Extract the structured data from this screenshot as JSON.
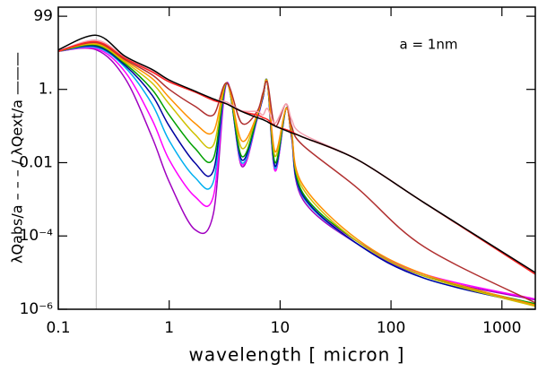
{
  "chart_data": {
    "type": "line",
    "y_label": "λQabs/a – – – / λQext/a ———",
    "x_label": "wavelength [ micron ]",
    "annotation": "a = 1nm",
    "log_x": true,
    "log_y": true,
    "xlim": [
      0.1,
      2000
    ],
    "ylim": [
      1e-06,
      175
    ],
    "xticks": [
      0.1,
      1,
      10,
      100,
      1000
    ],
    "yticks": [
      99,
      {
        "value": 1,
        "label": "1."
      },
      0.01,
      {
        "value": 0.0001,
        "label": "10⁻⁴"
      },
      {
        "value": 1e-06,
        "label": "10⁻⁶"
      }
    ],
    "vline": 0.22,
    "vline_color": "#c8c8c8",
    "x": [
      0.1,
      0.22,
      0.4,
      0.7,
      1,
      1.7,
      2.5,
      3.3,
      4.5,
      6.2,
      7,
      7.7,
      9,
      11.3,
      12.7,
      16,
      50,
      200,
      2000
    ],
    "series": [
      {
        "color": "#a000c0",
        "values": [
          11,
          12,
          2,
          0.05,
          0.003,
          0.00015,
          0.0004,
          1.5,
          0.008,
          0.15,
          0.6,
          1.5,
          0.006,
          0.3,
          0.05,
          0.001,
          6e-05,
          8e-06,
          1.8e-06
        ]
      },
      {
        "color": "#ff00ff",
        "values": [
          11,
          13,
          3,
          0.15,
          0.012,
          0.0012,
          0.0012,
          1.5,
          0.009,
          0.15,
          0.6,
          1.5,
          0.006,
          0.3,
          0.05,
          0.0012,
          7e-05,
          9e-06,
          1.9e-06
        ]
      },
      {
        "color": "#00b0f0",
        "values": [
          11,
          14,
          4,
          0.4,
          0.04,
          0.004,
          0.003,
          1.5,
          0.01,
          0.16,
          0.6,
          1.5,
          0.007,
          0.3,
          0.05,
          0.0012,
          6e-05,
          7e-06,
          1.3e-06
        ]
      },
      {
        "color": "#0000a0",
        "values": [
          11,
          15,
          4.5,
          0.7,
          0.1,
          0.01,
          0.006,
          1.5,
          0.012,
          0.17,
          0.6,
          1.5,
          0.008,
          0.3,
          0.05,
          0.0013,
          6e-05,
          7e-06,
          1.3e-06
        ]
      },
      {
        "color": "#00a000",
        "values": [
          11,
          16,
          5,
          1,
          0.2,
          0.025,
          0.013,
          1.5,
          0.015,
          0.18,
          0.7,
          1.5,
          0.01,
          0.3,
          0.07,
          0.0015,
          7e-05,
          8e-06,
          1.4e-06
        ]
      },
      {
        "color": "#d0c000",
        "values": [
          11,
          17,
          5.5,
          1.5,
          0.4,
          0.06,
          0.03,
          1.5,
          0.025,
          0.2,
          0.7,
          1.5,
          0.015,
          0.3,
          0.06,
          0.002,
          7e-05,
          8e-06,
          1.2e-06
        ]
      },
      {
        "color": "#ff9000",
        "values": [
          11,
          18,
          6,
          2,
          0.6,
          0.12,
          0.07,
          1.5,
          0.04,
          0.2,
          0.7,
          1.5,
          0.02,
          0.3,
          0.06,
          0.0025,
          8e-05,
          9e-06,
          1.3e-06
        ]
      },
      {
        "color": "#b03030",
        "values": [
          11,
          19,
          6.5,
          2.5,
          1,
          0.35,
          0.2,
          1.5,
          0.12,
          0.25,
          0.8,
          1.5,
          0.1,
          0.4,
          0.1,
          0.03,
          0.002,
          5e-05,
          1.5e-06
        ]
      },
      {
        "color": "#f4a0b0",
        "values": [
          11,
          22,
          7.5,
          3.2,
          1.7,
          0.85,
          0.52,
          0.45,
          0.26,
          0.25,
          0.2,
          0.3,
          0.12,
          0.4,
          0.15,
          0.06,
          0.012,
          0.0008,
          1e-05
        ]
      },
      {
        "color": "#ff2020",
        "values": [
          11,
          20,
          7,
          3,
          1.6,
          0.85,
          0.5,
          0.4,
          0.25,
          0.2,
          0.17,
          0.15,
          0.1,
          0.08,
          0.07,
          0.05,
          0.012,
          0.0008,
          9e-06
        ]
      },
      {
        "color": "#000000",
        "values": [
          12,
          30,
          8,
          3.5,
          1.8,
          0.9,
          0.55,
          0.4,
          0.25,
          0.17,
          0.15,
          0.13,
          0.1,
          0.075,
          0.065,
          0.05,
          0.012,
          0.0008,
          1e-05
        ]
      }
    ]
  }
}
